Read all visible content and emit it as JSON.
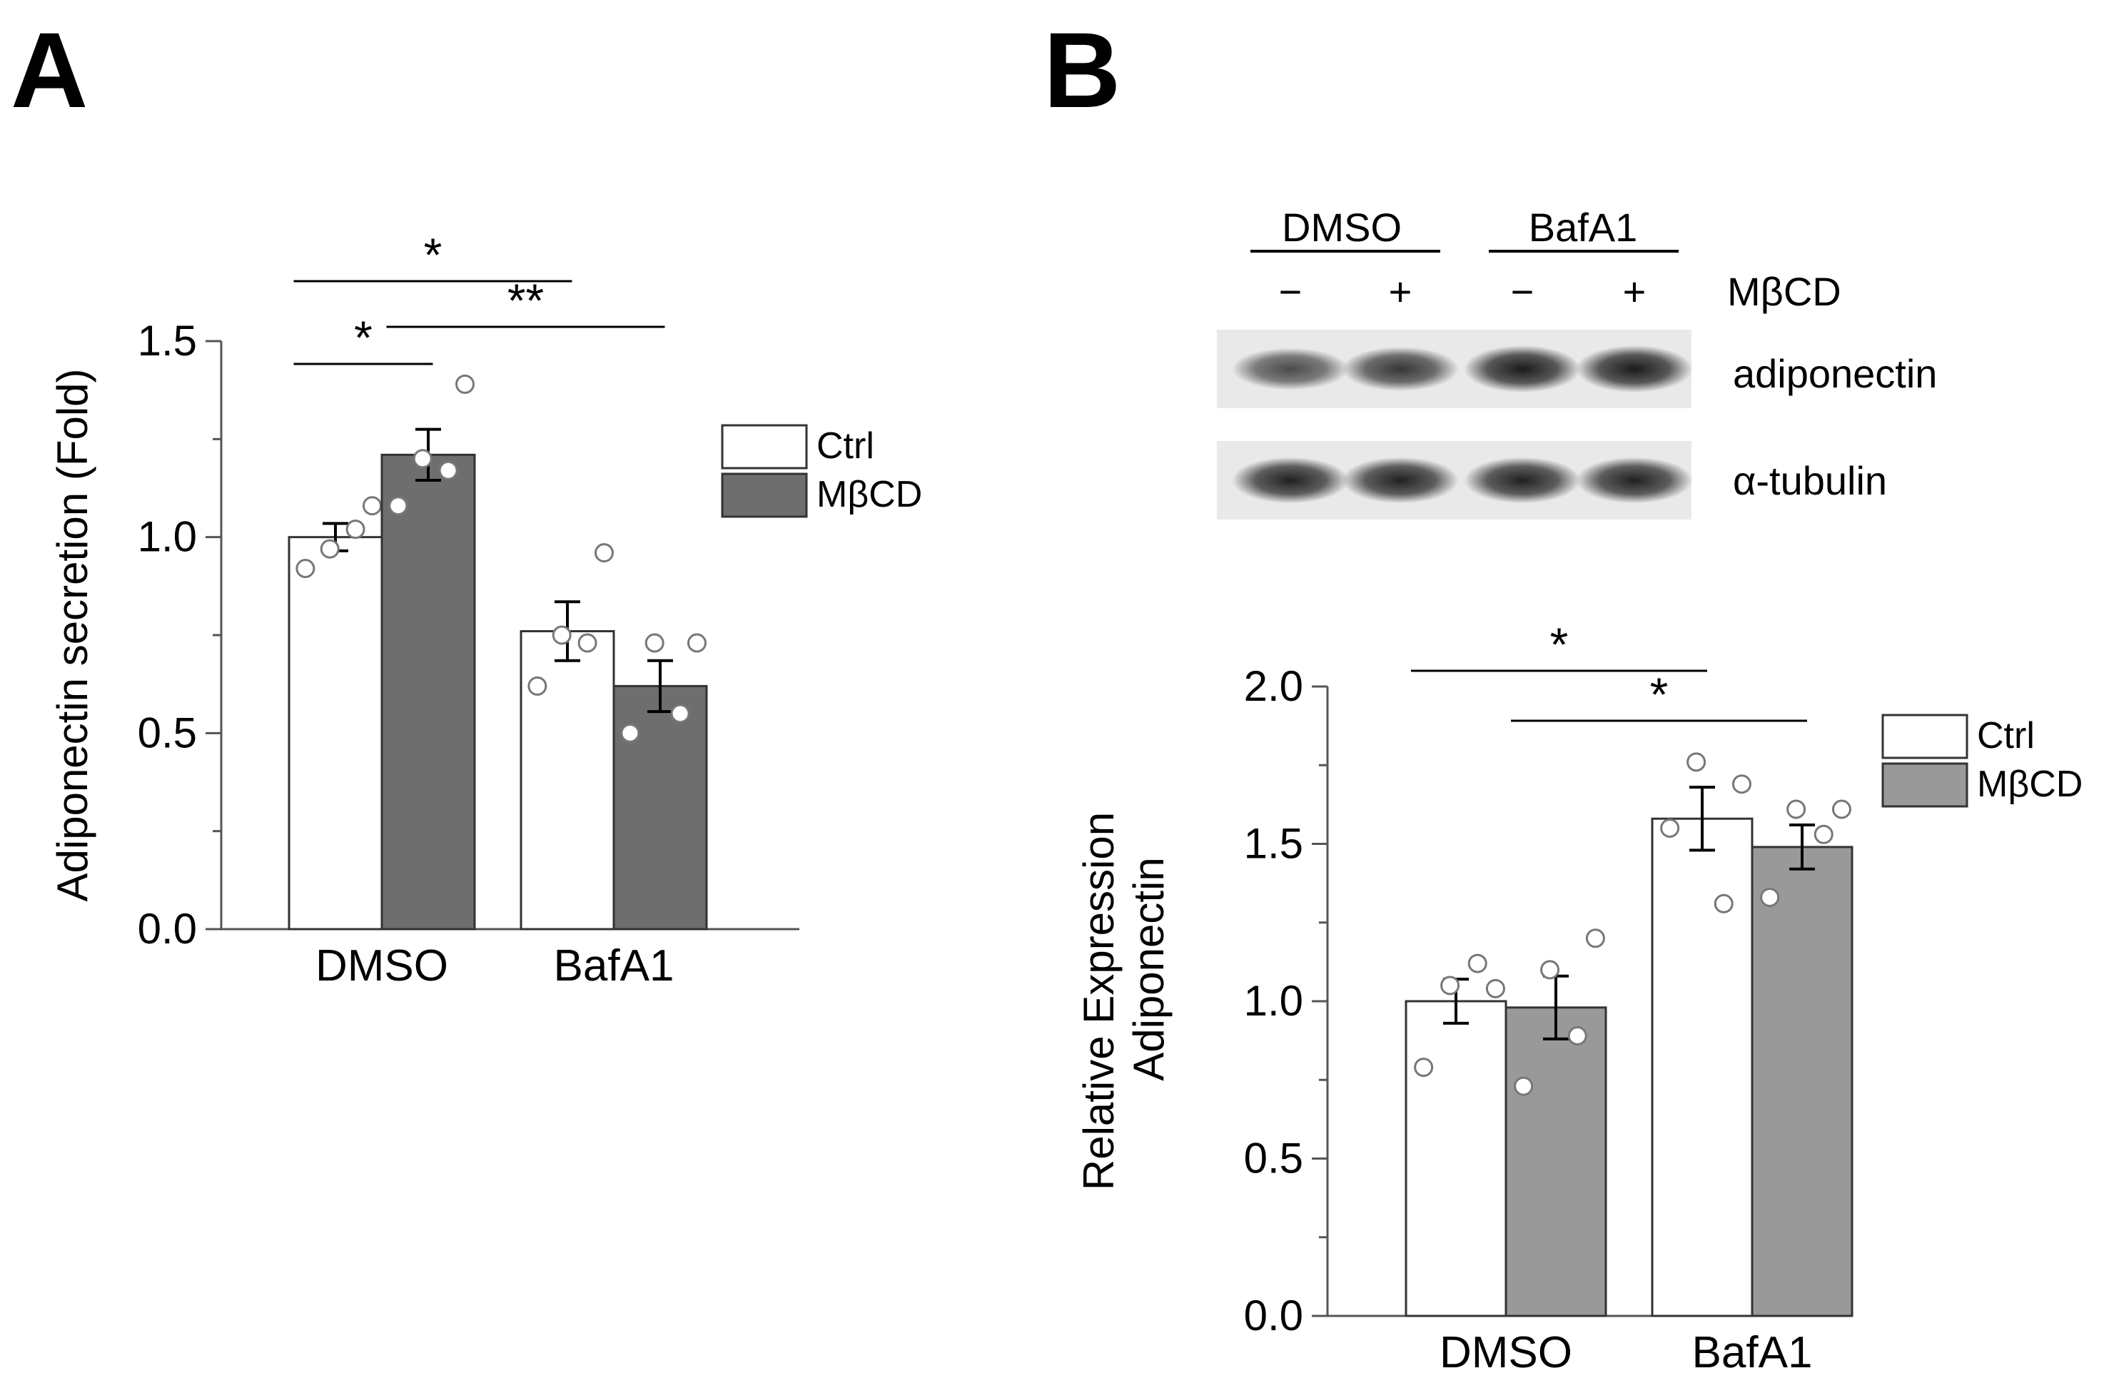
{
  "panels": {
    "a": {
      "letter": "A"
    },
    "b": {
      "letter": "B"
    }
  },
  "blot": {
    "groups": [
      "DMSO",
      "BafA1"
    ],
    "treatment_label": "MβCD",
    "treatment_signs": [
      "−",
      "+",
      "−",
      "+"
    ],
    "bands": [
      {
        "label": "adiponectin",
        "intensities": [
          0.55,
          0.7,
          0.9,
          0.9
        ]
      },
      {
        "label": "α-tubulin",
        "intensities": [
          0.85,
          0.85,
          0.85,
          0.85
        ]
      }
    ]
  },
  "chart_data": [
    {
      "type": "bar",
      "panel": "A",
      "ylabel": "Adiponectin secretion (Fold)",
      "xlabel": "",
      "categories": [
        "DMSO",
        "BafA1"
      ],
      "ylim": [
        0,
        1.5
      ],
      "yticks": [
        "0.0",
        "0.5",
        "1.0",
        "1.5"
      ],
      "legend": "right",
      "series": [
        {
          "name": "Ctrl",
          "color": "#ffffff",
          "values": [
            1.0,
            0.76
          ],
          "errors": [
            0.035,
            0.075
          ],
          "points": [
            [
              0.92,
              0.97,
              1.02,
              1.08
            ],
            [
              0.62,
              0.75,
              0.73,
              0.96
            ]
          ]
        },
        {
          "name": "MβCD",
          "color": "#6e6e6e",
          "values": [
            1.21,
            0.62
          ],
          "errors": [
            0.065,
            0.065
          ],
          "points": [
            [
              1.08,
              1.2,
              1.17,
              1.39
            ],
            [
              0.5,
              0.73,
              0.55,
              0.73
            ]
          ]
        }
      ],
      "significance": [
        {
          "label": "*",
          "from": [
            0,
            0
          ],
          "to": [
            0,
            1
          ]
        },
        {
          "label": "*",
          "from": [
            0,
            0
          ],
          "to": [
            1,
            0
          ]
        },
        {
          "label": "**",
          "from": [
            0,
            1
          ],
          "to": [
            1,
            1
          ]
        }
      ]
    },
    {
      "type": "bar",
      "panel": "B",
      "ylabel": "Relative Expression",
      "ylabel2": "Adiponectin",
      "xlabel": "",
      "categories": [
        "DMSO",
        "BafA1"
      ],
      "ylim": [
        0,
        2.0
      ],
      "yticks": [
        "0.0",
        "0.5",
        "1.0",
        "1.5",
        "2.0"
      ],
      "legend": "top-right",
      "series": [
        {
          "name": "Ctrl",
          "color": "#ffffff",
          "values": [
            1.0,
            1.58
          ],
          "errors": [
            0.07,
            0.1
          ],
          "points": [
            [
              0.79,
              1.05,
              1.12,
              1.04
            ],
            [
              1.55,
              1.76,
              1.31,
              1.69
            ]
          ]
        },
        {
          "name": "MβCD",
          "color": "#999999",
          "values": [
            0.98,
            1.49
          ],
          "errors": [
            0.1,
            0.07
          ],
          "points": [
            [
              0.73,
              1.1,
              0.89,
              1.2
            ],
            [
              1.33,
              1.61,
              1.53,
              1.61
            ]
          ]
        }
      ],
      "significance": [
        {
          "label": "*",
          "from": [
            0,
            0
          ],
          "to": [
            1,
            0
          ]
        },
        {
          "label": "*",
          "from": [
            0,
            1
          ],
          "to": [
            1,
            1
          ]
        }
      ]
    }
  ]
}
